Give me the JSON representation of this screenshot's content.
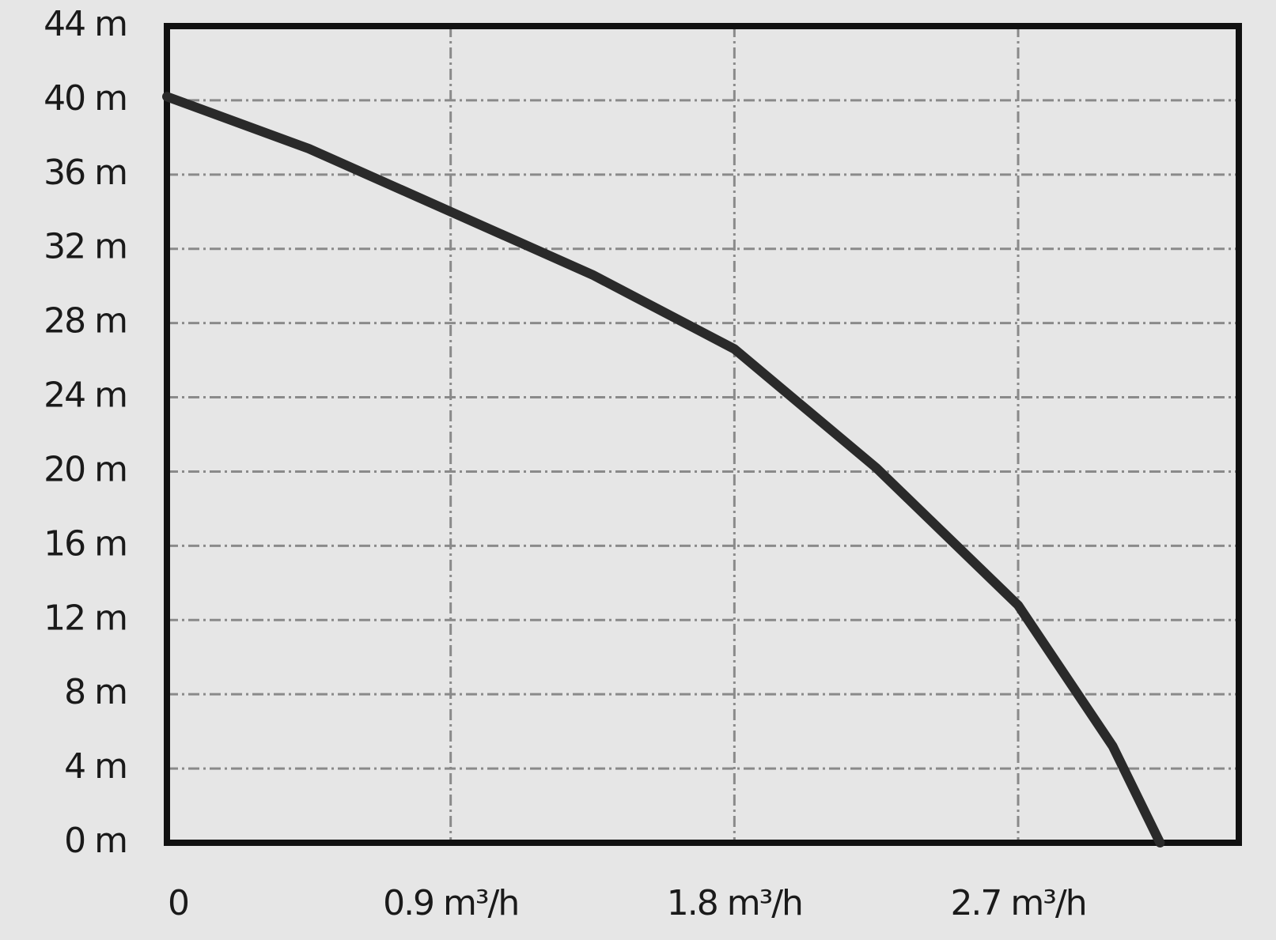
{
  "chart_data": {
    "type": "line",
    "x": [
      0,
      0.45,
      0.9,
      1.35,
      1.8,
      2.25,
      2.7,
      3.0,
      3.15
    ],
    "series": [
      {
        "color": "#2a2a2a",
        "values": [
          40.2,
          37.4,
          34,
          30.6,
          26.6,
          20.2,
          12.8,
          5.2,
          0
        ]
      }
    ],
    "xlim": [
      0,
      3.4
    ],
    "ylim": [
      0,
      44
    ],
    "xticks": [
      0,
      {
        "value": 0.9,
        "label": "0.9 m³/h"
      },
      {
        "value": 1.8,
        "label": "1.8 m³/h"
      },
      {
        "value": 2.7,
        "label": "2.7 m³/h"
      }
    ],
    "yticks": [
      {
        "value": 0,
        "label": "0 m"
      },
      {
        "value": 4,
        "label": "4 m"
      },
      {
        "value": 8,
        "label": "8 m"
      },
      {
        "value": 12,
        "label": "12 m"
      },
      {
        "value": 16,
        "label": "16 m"
      },
      {
        "value": 20,
        "label": "20 m"
      },
      {
        "value": 24,
        "label": "24 m"
      },
      {
        "value": 28,
        "label": "28 m"
      },
      {
        "value": 32,
        "label": "32 m"
      },
      {
        "value": 36,
        "label": "36 m"
      },
      {
        "value": 40,
        "label": "40 m"
      },
      {
        "value": 44,
        "label": "44 m"
      }
    ],
    "grid": true
  }
}
